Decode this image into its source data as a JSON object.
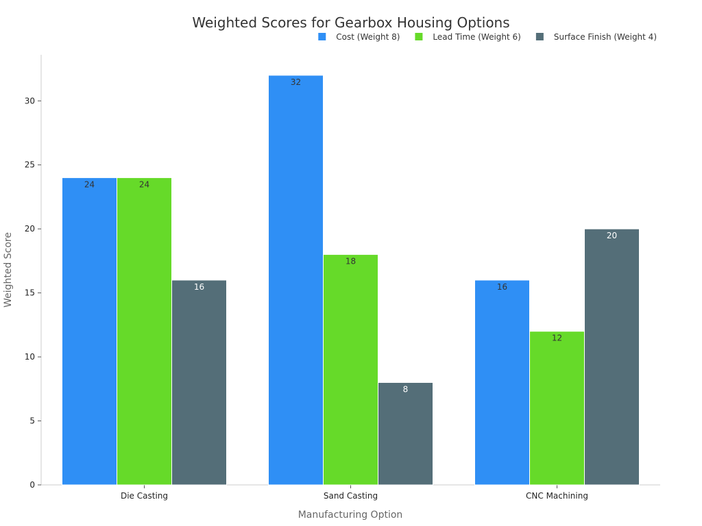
{
  "chart_data": {
    "type": "bar",
    "title": "Weighted Scores for Gearbox Housing Options",
    "xlabel": "Manufacturing Option",
    "ylabel": "Weighted Score",
    "categories": [
      "Die Casting",
      "Sand Casting",
      "CNC Machining"
    ],
    "series": [
      {
        "name": "Cost (Weight 8)",
        "color": "#2f8ff5",
        "label_color": "#333333",
        "values": [
          24,
          32,
          16
        ]
      },
      {
        "name": "Lead Time (Weight 6)",
        "color": "#66da29",
        "label_color": "#333333",
        "values": [
          24,
          18,
          12
        ]
      },
      {
        "name": "Surface Finish (Weight 4)",
        "color": "#546e78",
        "label_color": "#ffffff",
        "values": [
          16,
          8,
          20
        ]
      }
    ],
    "ylim": [
      0,
      33.6
    ],
    "yticks": [
      0,
      5,
      10,
      15,
      20,
      25,
      30
    ],
    "grid": false,
    "legend_position": "top-right",
    "data_labels": true
  }
}
